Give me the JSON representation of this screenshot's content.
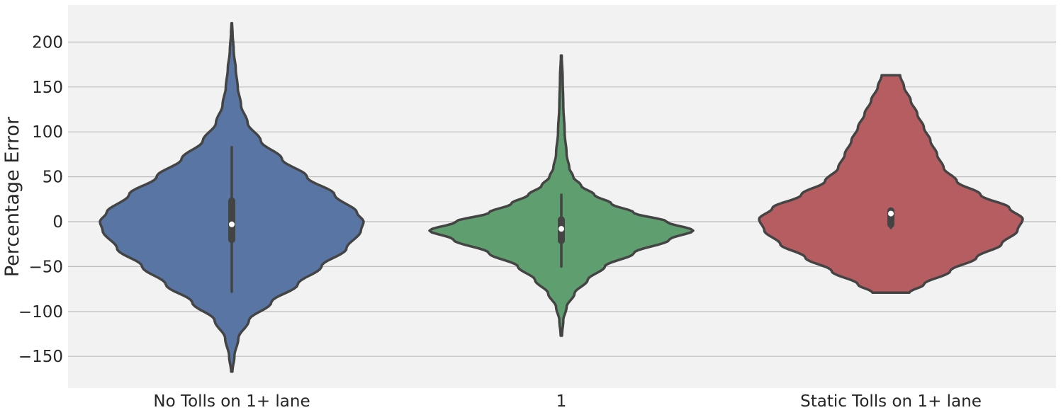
{
  "chart_data": {
    "type": "violin",
    "title": "",
    "xlabel": "",
    "ylabel": "Percentage Error",
    "ylim": [
      -185,
      240
    ],
    "yticks": [
      -150,
      -100,
      -50,
      0,
      50,
      100,
      150,
      200
    ],
    "ytick_labels": [
      "−150",
      "−100",
      "−50",
      "0",
      "50",
      "100",
      "150",
      "200"
    ],
    "grid": "horizontal",
    "categories": [
      "No Tolls on 1+ lane",
      "1",
      "Static Tolls on 1+ lane"
    ],
    "series": [
      {
        "name": "No Tolls on 1+ lane",
        "color": "#5875a4",
        "min": -167,
        "max": 221,
        "median": -3,
        "q1": -20,
        "q3": 23,
        "whisker_low": -78,
        "whisker_high": 83,
        "density": [
          [
            -167,
            0.005
          ],
          [
            -150,
            0.02
          ],
          [
            -130,
            0.05
          ],
          [
            -110,
            0.13
          ],
          [
            -90,
            0.3
          ],
          [
            -70,
            0.5
          ],
          [
            -50,
            0.68
          ],
          [
            -30,
            0.87
          ],
          [
            -10,
            0.98
          ],
          [
            0,
            1.0
          ],
          [
            10,
            0.95
          ],
          [
            30,
            0.78
          ],
          [
            50,
            0.57
          ],
          [
            70,
            0.38
          ],
          [
            90,
            0.22
          ],
          [
            110,
            0.12
          ],
          [
            130,
            0.07
          ],
          [
            150,
            0.045
          ],
          [
            170,
            0.03
          ],
          [
            190,
            0.015
          ],
          [
            210,
            0.006
          ],
          [
            221,
            0.002
          ]
        ]
      },
      {
        "name": "1",
        "color": "#5f9e6e",
        "min": -127,
        "max": 185,
        "median": -8,
        "q1": -21,
        "q3": 2,
        "whisker_low": -50,
        "whisker_high": 30,
        "density": [
          [
            -127,
            0.005
          ],
          [
            -110,
            0.015
          ],
          [
            -95,
            0.04
          ],
          [
            -80,
            0.1
          ],
          [
            -65,
            0.2
          ],
          [
            -50,
            0.33
          ],
          [
            -35,
            0.55
          ],
          [
            -20,
            0.82
          ],
          [
            -10,
            1.0
          ],
          [
            0,
            0.8
          ],
          [
            10,
            0.55
          ],
          [
            20,
            0.38
          ],
          [
            30,
            0.25
          ],
          [
            40,
            0.15
          ],
          [
            50,
            0.09
          ],
          [
            60,
            0.06
          ],
          [
            75,
            0.04
          ],
          [
            100,
            0.025
          ],
          [
            130,
            0.015
          ],
          [
            160,
            0.01
          ],
          [
            185,
            0.003
          ]
        ]
      },
      {
        "name": "Static Tolls on 1+ lane",
        "color": "#b55d60",
        "min": -79,
        "max": 163,
        "median": 9,
        "q1": -3,
        "q3": 12,
        "whisker_low": -7,
        "whisker_high": 13,
        "density": [
          [
            -79,
            0.14
          ],
          [
            -70,
            0.25
          ],
          [
            -55,
            0.45
          ],
          [
            -40,
            0.65
          ],
          [
            -25,
            0.84
          ],
          [
            -10,
            0.96
          ],
          [
            3,
            1.0
          ],
          [
            15,
            0.9
          ],
          [
            30,
            0.68
          ],
          [
            45,
            0.5
          ],
          [
            60,
            0.4
          ],
          [
            75,
            0.35
          ],
          [
            90,
            0.3
          ],
          [
            105,
            0.25
          ],
          [
            120,
            0.2
          ],
          [
            135,
            0.15
          ],
          [
            150,
            0.1
          ],
          [
            163,
            0.07
          ]
        ]
      }
    ]
  }
}
